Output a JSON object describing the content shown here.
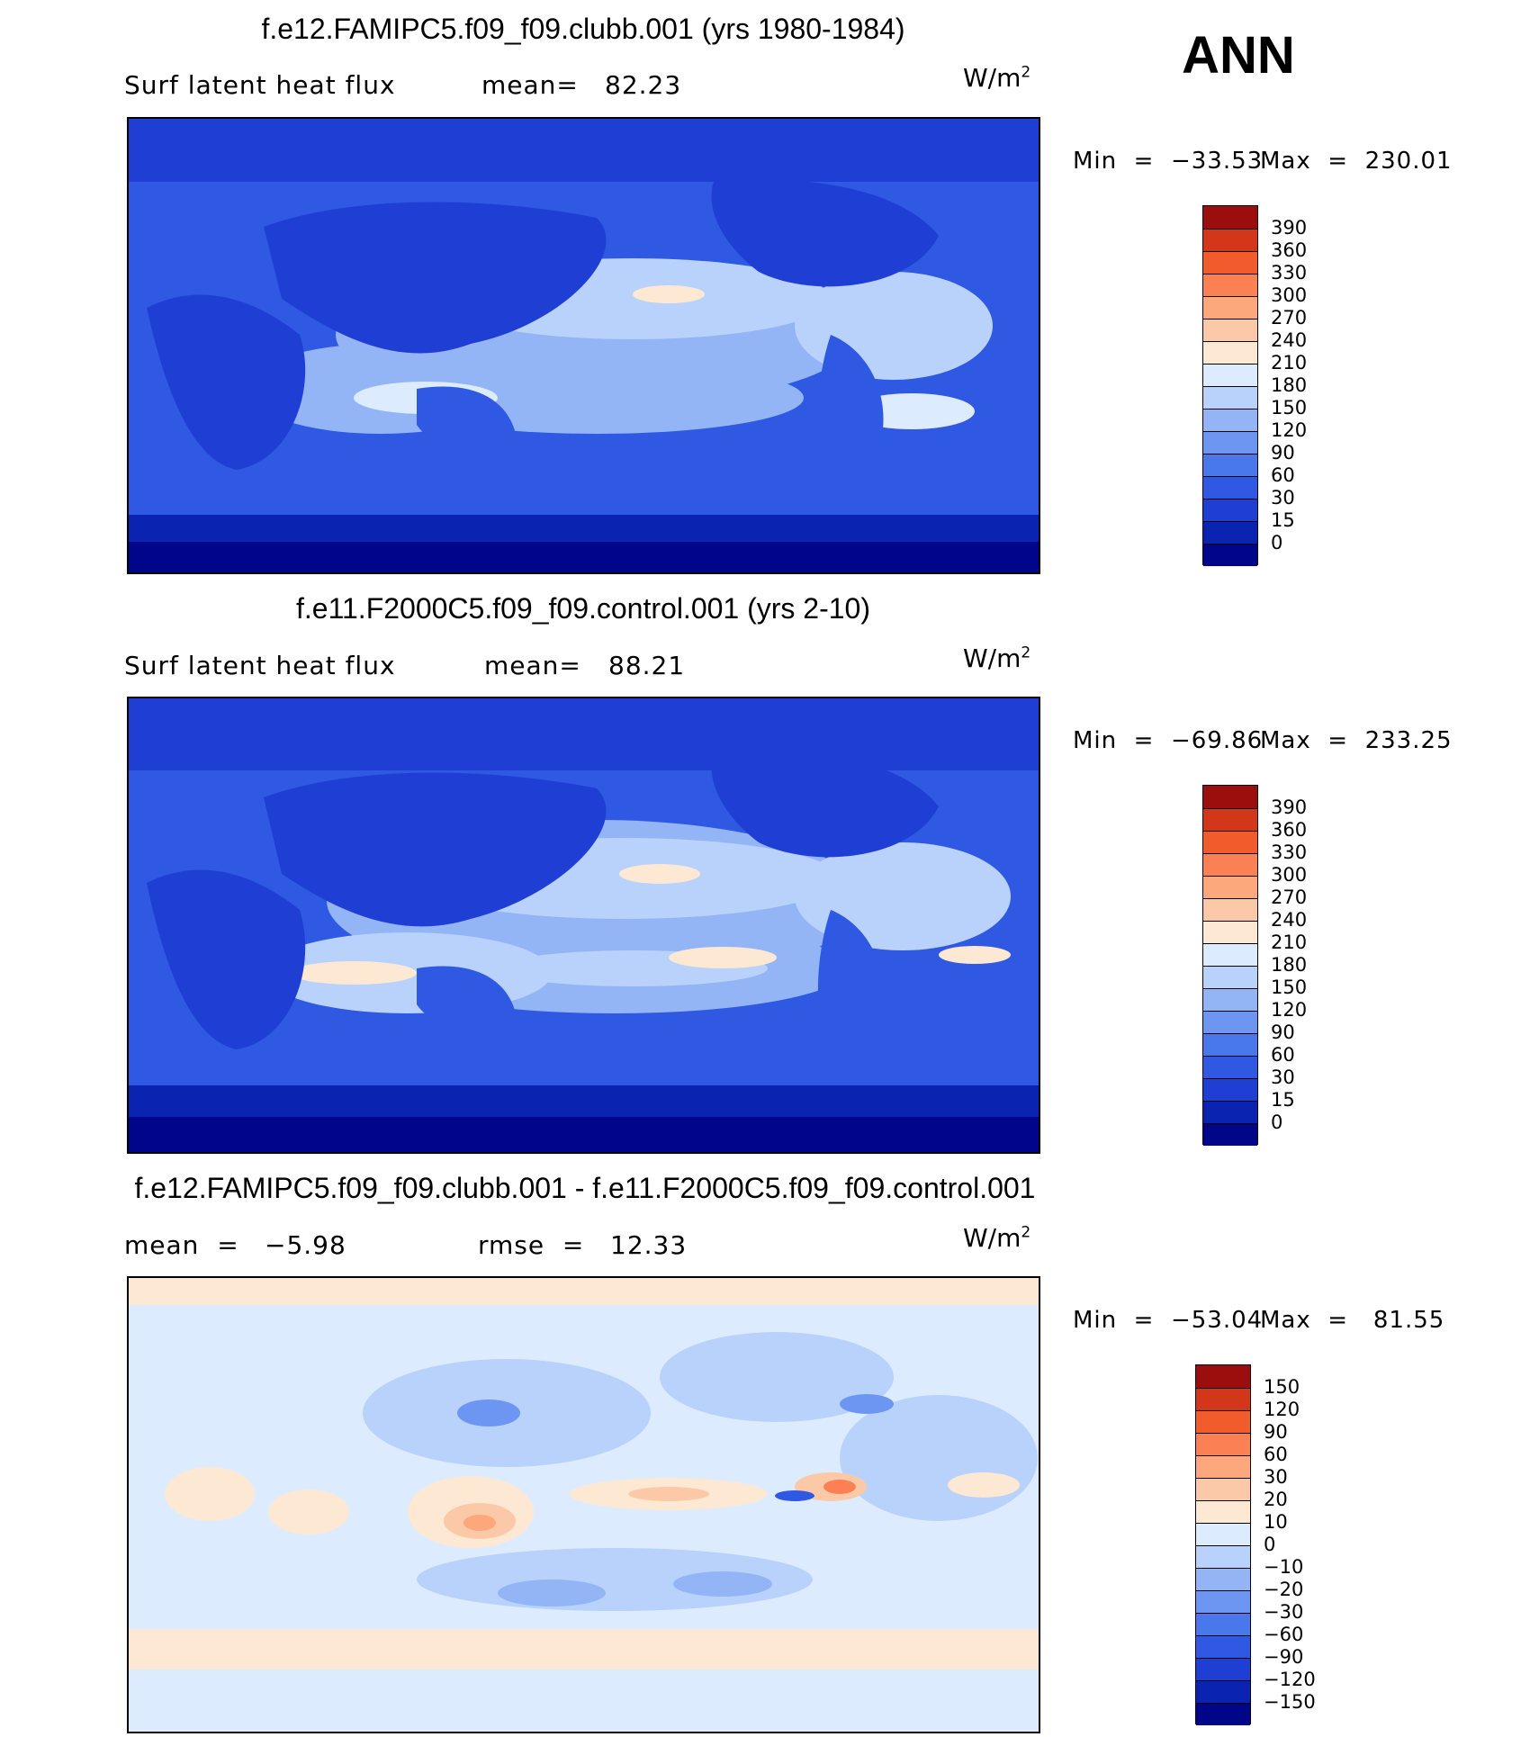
{
  "season": "ANN",
  "chart_data": [
    {
      "type": "heatmap",
      "title": "f.e12.FAMIPC5.f09_f09.clubb.001 (yrs 1980-1984)",
      "variable": "Surf latent heat flux",
      "stat_label": "mean=",
      "stat_value": "82.23",
      "units": "W/m",
      "units_exp": "2",
      "min_label": "Min  =  −33.53",
      "max_label": "Max  =  230.01",
      "min": -33.53,
      "max": 230.01,
      "mean": 82.23,
      "colorbar_levels": [
        "0",
        "15",
        "30",
        "60",
        "90",
        "120",
        "150",
        "180",
        "210",
        "240",
        "270",
        "300",
        "330",
        "360",
        "390"
      ],
      "colorbar_colors": [
        "#00068a",
        "#0a23b0",
        "#1f3fd4",
        "#2f58e3",
        "#4878ec",
        "#6d96f2",
        "#93b5f6",
        "#b9d2fb",
        "#dcecfe",
        "#fde8d4",
        "#fcc9a8",
        "#fca77c",
        "#fb8155",
        "#f25b2c",
        "#d4361a",
        "#9c0e0e"
      ]
    },
    {
      "type": "heatmap",
      "title": "f.e11.F2000C5.f09_f09.control.001 (yrs 2-10)",
      "variable": "Surf latent heat flux",
      "stat_label": "mean=",
      "stat_value": "88.21",
      "units": "W/m",
      "units_exp": "2",
      "min_label": "Min  =  −69.86",
      "max_label": "Max  =  233.25",
      "min": -69.86,
      "max": 233.25,
      "mean": 88.21,
      "colorbar_levels": [
        "0",
        "15",
        "30",
        "60",
        "90",
        "120",
        "150",
        "180",
        "210",
        "240",
        "270",
        "300",
        "330",
        "360",
        "390"
      ],
      "colorbar_colors": [
        "#00068a",
        "#0a23b0",
        "#1f3fd4",
        "#2f58e3",
        "#4878ec",
        "#6d96f2",
        "#93b5f6",
        "#b9d2fb",
        "#dcecfe",
        "#fde8d4",
        "#fcc9a8",
        "#fca77c",
        "#fb8155",
        "#f25b2c",
        "#d4361a",
        "#9c0e0e"
      ]
    },
    {
      "type": "heatmap",
      "title": "f.e12.FAMIPC5.f09_f09.clubb.001 - f.e11.F2000C5.f09_f09.control.001",
      "stat_label": "mean  =",
      "stat_value": "−5.98",
      "stat2_label": "rmse  =",
      "stat2_value": "12.33",
      "units": "W/m",
      "units_exp": "2",
      "min_label": "Min  =  −53.04",
      "max_label": "Max  =   81.55",
      "min": -53.04,
      "max": 81.55,
      "mean": -5.98,
      "rmse": 12.33,
      "colorbar_levels": [
        "−150",
        "−120",
        "−90",
        "−60",
        "−30",
        "−20",
        "−10",
        "0",
        "10",
        "20",
        "30",
        "60",
        "90",
        "120",
        "150"
      ],
      "colorbar_colors": [
        "#00068a",
        "#0a23b0",
        "#1f3fd4",
        "#2f58e3",
        "#4878ec",
        "#6d96f2",
        "#93b5f6",
        "#b9d2fb",
        "#dcecfe",
        "#fde8d4",
        "#fcc9a8",
        "#fca77c",
        "#fb8155",
        "#f25b2c",
        "#d4361a",
        "#9c0e0e"
      ]
    }
  ]
}
